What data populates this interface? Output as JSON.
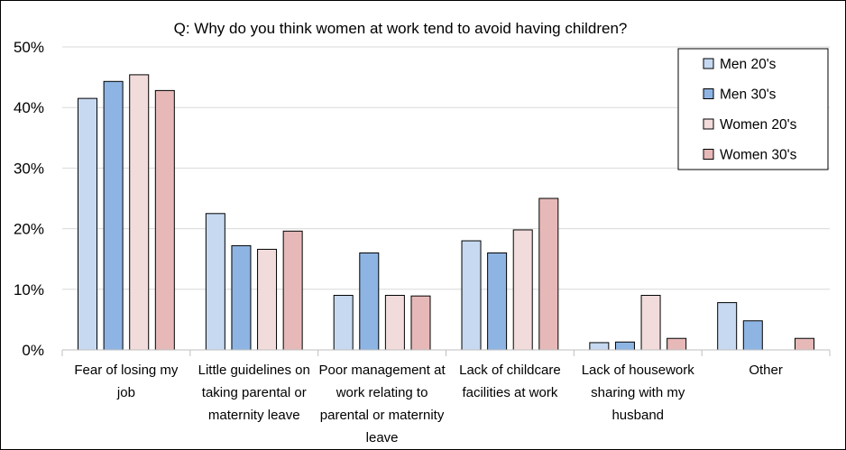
{
  "chart_data": {
    "type": "bar",
    "title": "Q: Why do you think women at work tend to avoid having children?",
    "xlabel": "",
    "ylabel": "",
    "ylim": [
      0,
      50
    ],
    "yticks": [
      "0%",
      "10%",
      "20%",
      "30%",
      "40%",
      "50%"
    ],
    "grid": true,
    "legend_position": "top-right",
    "categories": [
      [
        "Fear of losing my",
        "job"
      ],
      [
        "Little guidelines on",
        "taking parental or",
        "maternity leave"
      ],
      [
        "Poor management at",
        "work relating to",
        "parental or maternity",
        "leave"
      ],
      [
        "Lack of childcare",
        "facilities at work"
      ],
      [
        "Lack of housework",
        "sharing with my",
        "husband"
      ],
      [
        "Other"
      ]
    ],
    "series": [
      {
        "name": "Men 20's",
        "color": "#c6d9f1",
        "values": [
          41.5,
          22.5,
          9.0,
          18.0,
          1.2,
          7.8
        ]
      },
      {
        "name": "Men 30's",
        "color": "#8eb4e3",
        "values": [
          44.3,
          17.2,
          16.0,
          16.0,
          1.3,
          4.8
        ]
      },
      {
        "name": "Women 20's",
        "color": "#f2dcdb",
        "values": [
          45.4,
          16.6,
          9.0,
          19.8,
          9.0,
          0.0
        ]
      },
      {
        "name": "Women 30's",
        "color": "#e6b9b8",
        "values": [
          42.8,
          19.6,
          8.9,
          25.0,
          1.9,
          1.9
        ]
      }
    ]
  }
}
